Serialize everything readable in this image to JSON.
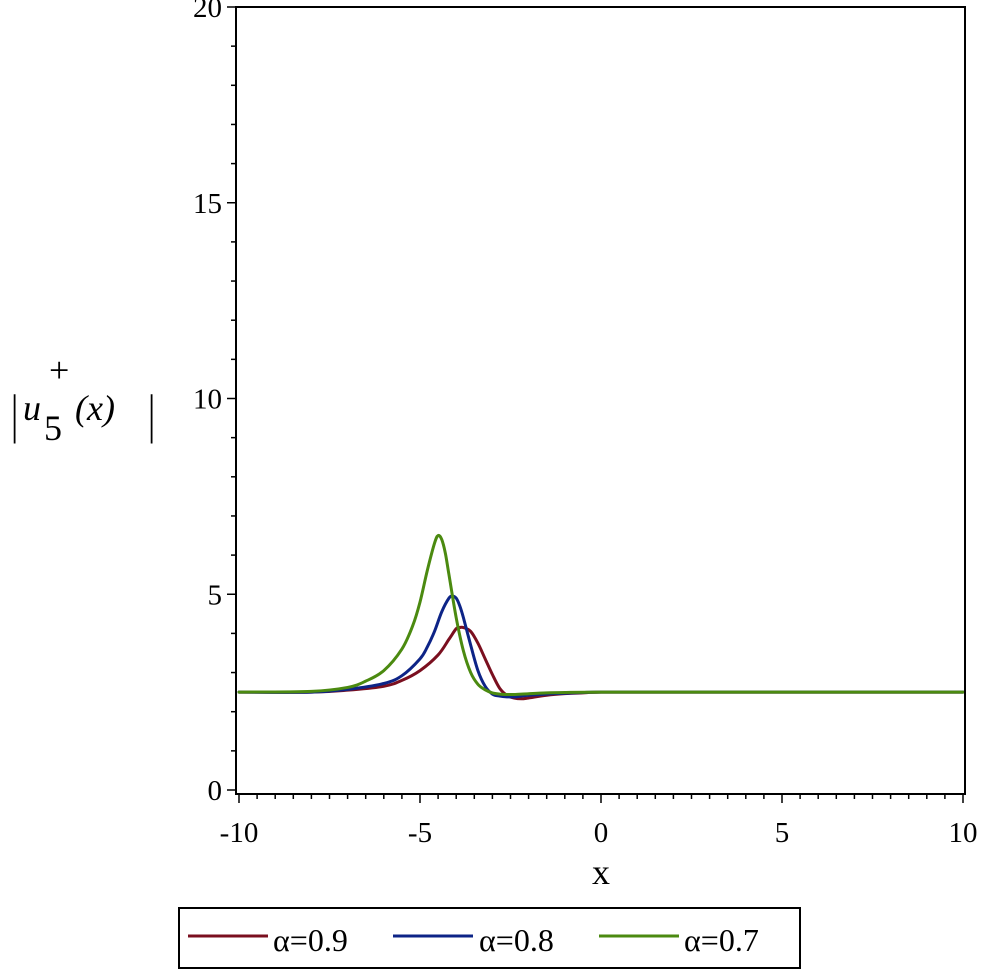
{
  "chart_data": {
    "type": "line",
    "xlabel": "x",
    "ylabel": {
      "bar": "|",
      "base": "u",
      "sub": "5",
      "sup": "+",
      "arg": " (x)"
    },
    "xlim": [
      -10,
      10
    ],
    "ylim": [
      0,
      20
    ],
    "x_ticks": [
      -10,
      -5,
      0,
      5,
      10
    ],
    "y_ticks": [
      0,
      5,
      10,
      15,
      20
    ],
    "x_tick_labels": [
      "-10",
      "-5",
      "0",
      "5",
      "10"
    ],
    "y_tick_labels": [
      "0",
      "5",
      "10",
      "15",
      "20"
    ],
    "grid": false,
    "legend_position": "bottom",
    "series": [
      {
        "name": "α=0.9",
        "color": "#7a0f1f",
        "x": [
          -10,
          -8,
          -7,
          -6,
          -5.5,
          -5,
          -4.5,
          -4.2,
          -4.0,
          -3.9,
          -3.8,
          -3.6,
          -3.4,
          -3.2,
          -3.0,
          -2.8,
          -2.6,
          -2.4,
          -2.2,
          -2.0,
          -1.5,
          -1.0,
          -0.5,
          0,
          2,
          5,
          10
        ],
        "y": [
          2.5,
          2.5,
          2.55,
          2.65,
          2.8,
          3.05,
          3.45,
          3.85,
          4.12,
          4.15,
          4.15,
          4.05,
          3.75,
          3.35,
          2.95,
          2.6,
          2.42,
          2.35,
          2.33,
          2.35,
          2.42,
          2.46,
          2.48,
          2.5,
          2.5,
          2.5,
          2.5
        ]
      },
      {
        "name": "α=0.8",
        "color": "#0d2487",
        "x": [
          -10,
          -8,
          -7,
          -6,
          -5.5,
          -5,
          -4.8,
          -4.6,
          -4.4,
          -4.2,
          -4.1,
          -4.0,
          -3.9,
          -3.8,
          -3.6,
          -3.4,
          -3.2,
          -3.0,
          -2.8,
          -2.6,
          -2.4,
          -2.2,
          -2.0,
          -1.5,
          -1.0,
          -0.5,
          0,
          2,
          5,
          10
        ],
        "y": [
          2.5,
          2.5,
          2.57,
          2.72,
          2.92,
          3.35,
          3.65,
          4.05,
          4.55,
          4.9,
          4.95,
          4.9,
          4.7,
          4.4,
          3.7,
          3.05,
          2.65,
          2.45,
          2.4,
          2.38,
          2.38,
          2.4,
          2.42,
          2.45,
          2.47,
          2.49,
          2.5,
          2.5,
          2.5,
          2.5
        ]
      },
      {
        "name": "α=0.7",
        "color": "#4b8a10",
        "x": [
          -10,
          -8,
          -7,
          -6.5,
          -6,
          -5.5,
          -5.2,
          -5.0,
          -4.8,
          -4.6,
          -4.5,
          -4.4,
          -4.3,
          -4.2,
          -4.0,
          -3.8,
          -3.6,
          -3.4,
          -3.2,
          -3.0,
          -2.8,
          -2.6,
          -2.4,
          -2.0,
          -1.5,
          -1.0,
          0,
          2,
          5,
          10
        ],
        "y": [
          2.5,
          2.52,
          2.62,
          2.78,
          3.05,
          3.6,
          4.2,
          4.8,
          5.6,
          6.3,
          6.5,
          6.4,
          6.05,
          5.5,
          4.4,
          3.55,
          3.0,
          2.7,
          2.56,
          2.48,
          2.45,
          2.44,
          2.44,
          2.46,
          2.48,
          2.49,
          2.5,
          2.5,
          2.5,
          2.5
        ]
      }
    ]
  }
}
